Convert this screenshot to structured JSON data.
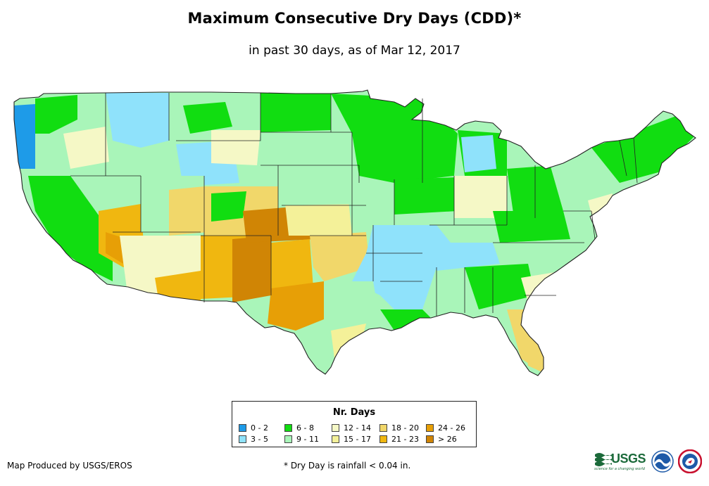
{
  "title": "Maximum Consecutive Dry Days (CDD)*",
  "subtitle": "in past 30 days, as of Mar 12, 2017",
  "legend": {
    "title": "Nr. Days",
    "classes": [
      {
        "label": "0 - 2",
        "color": "#1e9be8"
      },
      {
        "label": "3 - 5",
        "color": "#8fe2fb"
      },
      {
        "label": "6 - 8",
        "color": "#11dd11"
      },
      {
        "label": "9 - 11",
        "color": "#a9f5b9"
      },
      {
        "label": "12 - 14",
        "color": "#f5f8c6"
      },
      {
        "label": "15 - 17",
        "color": "#f4f199"
      },
      {
        "label": "18 - 20",
        "color": "#f1d76a"
      },
      {
        "label": "21 - 23",
        "color": "#f0b710"
      },
      {
        "label": "24 - 26",
        "color": "#e79f06"
      },
      {
        "label": "> 26",
        "color": "#d08505"
      }
    ]
  },
  "credit": "Map Produced by USGS/EROS",
  "footnote": "* Dry Day is rainfall < 0.04 in.",
  "logos": {
    "usgs": {
      "text": "USGS",
      "tagline": "science for a changing world",
      "color": "#1b6a3a"
    },
    "noaa": {
      "color": "#1e5aa8"
    },
    "nws": {
      "color": "#c8102e"
    }
  },
  "map": {
    "description_regions": [
      {
        "name": "pacific-northwest-coast",
        "class": "0 - 2"
      },
      {
        "name": "idaho",
        "class": "3 - 5"
      },
      {
        "name": "upper-midwest",
        "class": "6 - 8"
      },
      {
        "name": "lower-mississippi-valley",
        "class": "3 - 5"
      },
      {
        "name": "california-central",
        "class": "9 - 11"
      },
      {
        "name": "arizona",
        "class": "12 - 14"
      },
      {
        "name": "west-texas-new-mexico",
        "class": "> 26"
      },
      {
        "name": "oklahoma-south-plains",
        "class": "21 - 23"
      },
      {
        "name": "nevada-southern",
        "class": "21 - 23"
      },
      {
        "name": "northeast",
        "class": "6 - 8"
      },
      {
        "name": "florida-southern",
        "class": "18 - 20"
      }
    ]
  }
}
